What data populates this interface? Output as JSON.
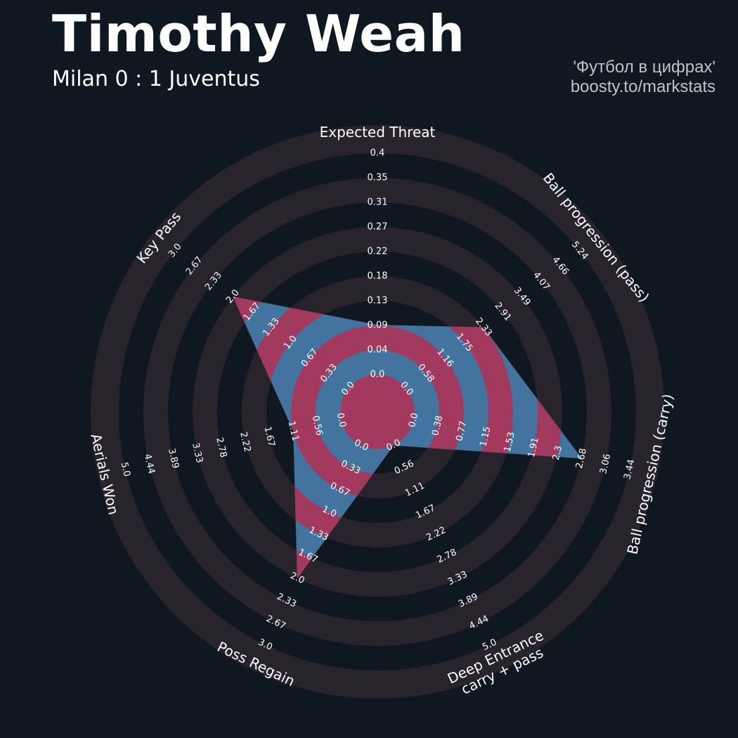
{
  "header": {
    "title": "Timothy Weah",
    "subtitle": "Milan 0 : 1 Juventus",
    "credit_line1": "'Футбол в цифрах'",
    "credit_line2": "boosty.to/markstats"
  },
  "colors": {
    "background": "#0f1820",
    "ring_band": "#29242c",
    "player_fill": "#4374a0",
    "player_highlight": "#a23a60",
    "label_text": "#ffffff"
  },
  "chart_data": {
    "type": "radar",
    "player": "Timothy Weah",
    "params": [
      "Expected Threat",
      "Ball progression (pass)",
      "Ball progression (carry)",
      "Deep Entrance\ncarry + pass",
      "Poss Regain",
      "Aerials Won",
      "Key Pass"
    ],
    "values": [
      0.09,
      2.33,
      2.68,
      0.0,
      2.0,
      1.11,
      2.0
    ],
    "ranges": [
      [
        0.0,
        0.4
      ],
      [
        0.0,
        5.24
      ],
      [
        0.0,
        3.44
      ],
      [
        0.0,
        5.0
      ],
      [
        0.0,
        3.0
      ],
      [
        0.0,
        5.0
      ],
      [
        0.0,
        3.0
      ]
    ],
    "tick_labels": [
      [
        "0.0",
        "0.04",
        "0.09",
        "0.13",
        "0.18",
        "0.22",
        "0.27",
        "0.31",
        "0.35",
        "0.4"
      ],
      [
        "0.0",
        "0.58",
        "1.16",
        "1.75",
        "2.33",
        "2.91",
        "3.49",
        "4.07",
        "4.66",
        "5.24"
      ],
      [
        "0.0",
        "0.38",
        "0.77",
        "1.15",
        "1.53",
        "1.91",
        "2.3",
        "2.68",
        "3.06",
        "3.44"
      ],
      [
        "0.0",
        "0.56",
        "1.11",
        "1.67",
        "2.22",
        "2.78",
        "3.33",
        "3.89",
        "4.44",
        "5.0"
      ],
      [
        "0.0",
        "0.33",
        "0.67",
        "1.0",
        "1.33",
        "1.67",
        "2.0",
        "2.33",
        "2.67",
        "3.0"
      ],
      [
        "0.0",
        "0.56",
        "1.11",
        "1.67",
        "2.22",
        "2.78",
        "3.33",
        "3.89",
        "4.44",
        "5.0"
      ],
      [
        "0.0",
        "0.33",
        "0.67",
        "1.0",
        "1.33",
        "1.67",
        "2.0",
        "2.33",
        "2.67",
        "3.0"
      ]
    ]
  }
}
